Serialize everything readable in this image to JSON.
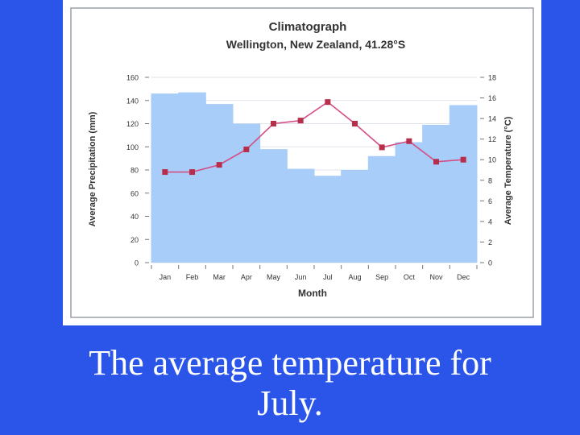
{
  "chart_data": {
    "type": "bar",
    "title": "Climatograph",
    "subtitle": "Wellington, New Zealand, 41.28°S",
    "xlabel": "Month",
    "ylabel_left": "Average Precipitation (mm)",
    "ylabel_right": "Average Temperature (°C)",
    "categories": [
      "Jan",
      "Feb",
      "Mar",
      "Apr",
      "May",
      "Jun",
      "Jul",
      "Aug",
      "Sep",
      "Oct",
      "Nov",
      "Dec"
    ],
    "y_left_ticks": [
      "160",
      "140",
      "120",
      "100",
      "80",
      "60",
      "40",
      "20",
      "0"
    ],
    "y_right_ticks": [
      "18",
      "16",
      "14",
      "12",
      "10",
      "8",
      "6",
      "4",
      "2",
      "0"
    ],
    "ylim_left": [
      0,
      160
    ],
    "ylim_right": [
      0,
      18
    ],
    "series": [
      {
        "type": "bar",
        "axis": "left",
        "values": [
          146,
          147,
          137,
          120,
          98,
          81,
          75,
          80,
          92,
          104,
          119,
          136
        ]
      },
      {
        "type": "line",
        "axis": "right",
        "values": [
          8.8,
          8.8,
          9.5,
          11.0,
          13.5,
          13.8,
          15.6,
          13.5,
          11.2,
          11.8,
          9.8,
          10.0
        ]
      }
    ],
    "colors": {
      "bars": "#a8cdf8",
      "line": "#d44e86",
      "markers": "#b82e4a",
      "grid": "#dfe3ea",
      "text": "#333333"
    },
    "grid": true
  },
  "caption": {
    "line1": "The average temperature for",
    "line2": "July."
  }
}
